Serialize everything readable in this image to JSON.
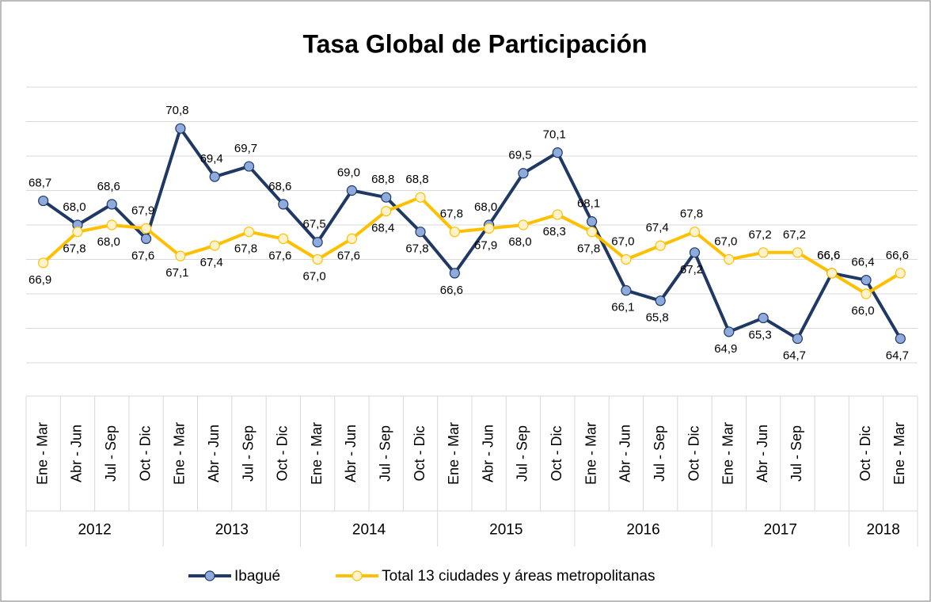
{
  "chart_data": {
    "type": "line",
    "title": "Tasa Global de Participación",
    "groups": [
      {
        "name": "2012",
        "categories": [
          "Ene - Mar",
          "Abr - Jun",
          "Jul - Sep",
          "Oct - Dic"
        ]
      },
      {
        "name": "2013",
        "categories": [
          "Ene - Mar",
          "Abr - Jun",
          "Jul - Sep",
          "Oct - Dic"
        ]
      },
      {
        "name": "2014",
        "categories": [
          "Ene - Mar",
          "Abr - Jun",
          "Jul - Sep",
          "Oct - Dic"
        ]
      },
      {
        "name": "2015",
        "categories": [
          "Ene - Mar",
          "Abr - Jun",
          "Jul - Sep",
          "Oct - Dic"
        ]
      },
      {
        "name": "2016",
        "categories": [
          "Ene - Mar",
          "Abr - Jun",
          "Jul - Sep",
          "Oct - Dic"
        ]
      },
      {
        "name": "2017",
        "categories": [
          "Ene - Mar",
          "Abr - Jun",
          "Jul - Sep",
          null
        ]
      },
      {
        "name": "2018",
        "categories": [
          "Oct - Dic",
          "Ene - Mar"
        ]
      }
    ],
    "series": [
      {
        "name": "Ibagué",
        "color": "#1f3864",
        "marker_color": "#8faadc",
        "values": [
          68.7,
          68.0,
          68.6,
          67.6,
          70.8,
          69.4,
          69.7,
          68.6,
          67.5,
          69.0,
          68.8,
          67.8,
          66.6,
          68.0,
          69.5,
          70.1,
          68.1,
          66.1,
          65.8,
          67.2,
          64.9,
          65.3,
          64.7,
          66.6,
          66.4,
          64.7
        ],
        "value_labels": [
          "68,7",
          "68,0",
          "68,6",
          "67,6",
          "70,8",
          "69,4",
          "69,7",
          "68,6",
          "67,5",
          "69,0",
          "68,8",
          "67,8",
          "66,6",
          "68,0",
          "69,5",
          "70,1",
          "68,1",
          "66,1",
          "65,8",
          "67,2",
          "64,9",
          "65,3",
          "64,7",
          "66,6",
          "66,4",
          "64,7"
        ]
      },
      {
        "name": "Total 13 ciudades y áreas metropolitanas",
        "color": "#ffc000",
        "marker_color": "#fff2cc",
        "values": [
          66.9,
          67.8,
          68.0,
          67.9,
          67.1,
          67.4,
          67.8,
          67.6,
          67.0,
          67.6,
          68.4,
          68.8,
          67.8,
          67.9,
          68.0,
          68.3,
          67.8,
          67.0,
          67.4,
          67.8,
          67.0,
          67.2,
          67.2,
          66.6,
          66.0,
          66.6
        ],
        "value_labels": [
          "66,9",
          "67,8",
          "68,0",
          "67,9",
          "67,1",
          "67,4",
          "67,8",
          "67,6",
          "67,0",
          "67,6",
          "68,4",
          "68,8",
          "67,8",
          "67,9",
          "68,0",
          "68,3",
          "67,8",
          "67,0",
          "67,4",
          "67,8",
          "67,0",
          "67,2",
          "67,2",
          "66,6",
          "66,0",
          "66,6"
        ]
      }
    ],
    "ylim": [
      64,
      72
    ],
    "yticks": [
      64,
      65,
      66,
      67,
      68,
      69,
      70,
      71,
      72
    ],
    "grid": true,
    "legend": "bottom"
  }
}
